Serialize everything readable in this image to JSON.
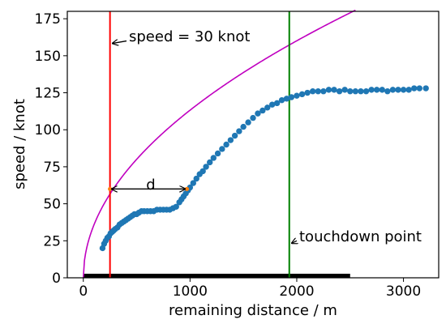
{
  "chart_data": {
    "type": "scatter",
    "xlabel": "remaining distance / m",
    "ylabel": "speed / knot",
    "xlim": [
      -150,
      3330
    ],
    "ylim": [
      0,
      180
    ],
    "xticks": [
      0,
      1000,
      2000,
      3000
    ],
    "yticks": [
      0,
      25,
      50,
      75,
      100,
      125,
      150,
      175
    ],
    "grid": false,
    "colors": {
      "points": "#1f77b4",
      "curve": "#c000c0",
      "red_line": "#ff0000",
      "green_line": "#008000",
      "orange_marker": "#ff7f0e",
      "runway_bar": "#000000"
    },
    "series": [
      {
        "kind": "scatter",
        "x": [
          180,
          195,
          210,
          225,
          240,
          255,
          270,
          285,
          300,
          320,
          340,
          360,
          380,
          400,
          420,
          440,
          460,
          480,
          500,
          520,
          545,
          570,
          600,
          630,
          660,
          690,
          720,
          750,
          780,
          810,
          840,
          870,
          900,
          920,
          940,
          960,
          980,
          1000,
          1030,
          1060,
          1090,
          1120,
          1150,
          1185,
          1220,
          1260,
          1300,
          1340,
          1380,
          1420,
          1460,
          1500,
          1545,
          1590,
          1635,
          1680,
          1725,
          1770,
          1815,
          1860,
          1905,
          1950,
          2000,
          2050,
          2100,
          2150,
          2200,
          2250,
          2300,
          2350,
          2400,
          2450,
          2500,
          2550,
          2600,
          2650,
          2700,
          2750,
          2800,
          2850,
          2900,
          2950,
          3000,
          3050,
          3100,
          3150,
          3210
        ],
        "y": [
          20,
          23,
          25,
          27,
          28,
          30,
          31,
          32,
          33,
          34,
          36,
          37,
          38,
          39,
          40,
          41,
          42,
          43,
          43,
          44,
          45,
          45,
          45,
          45,
          45,
          46,
          46,
          46,
          46,
          46,
          47,
          48,
          51,
          53,
          55,
          57,
          59,
          61,
          64,
          67,
          70,
          72,
          75,
          78,
          81,
          84,
          87,
          90,
          93,
          96,
          99,
          102,
          105,
          108,
          111,
          113,
          115,
          117,
          118,
          120,
          121,
          122,
          123,
          124,
          125,
          126,
          126,
          126,
          127,
          127,
          126,
          127,
          126,
          126,
          126,
          126,
          127,
          127,
          127,
          126,
          127,
          127,
          127,
          127,
          128,
          128,
          128
        ]
      },
      {
        "kind": "line",
        "curve_scale": 3.58,
        "x_start": 0,
        "x_end": 2550
      }
    ],
    "vlines": [
      {
        "x": 250,
        "color": "red"
      },
      {
        "x": 1930,
        "color": "green"
      }
    ],
    "orange_points": [
      {
        "x": 250,
        "y": 60
      },
      {
        "x": 970,
        "y": 60
      }
    ],
    "runway_bar": {
      "x_start": 0,
      "x_end": 2500
    },
    "annotations": {
      "speed_label": "speed = 30 knot",
      "touchdown_label": "touchdown point",
      "d_label": "d"
    },
    "annotation_anchors": {
      "speed_arrow_target": {
        "x": 250,
        "y": 160
      },
      "touchdown_arrow_target": {
        "x": 1930,
        "y": 25
      },
      "d_arrow": {
        "x_start": 250,
        "x_end": 970,
        "y": 60
      }
    }
  }
}
